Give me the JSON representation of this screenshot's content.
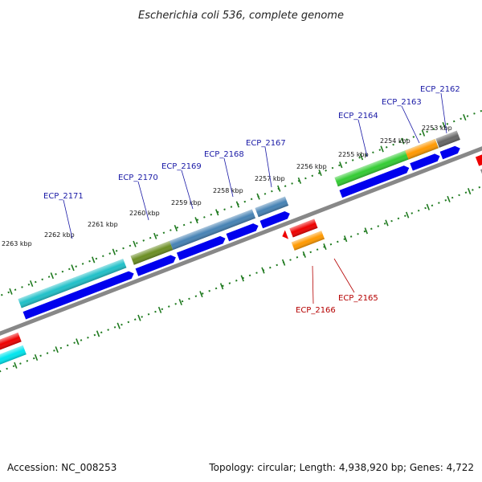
{
  "header": {
    "title": "Escherichia coli 536, complete genome"
  },
  "footer": {
    "accession": "Accession: NC_008253",
    "topology": "Topology: circular; Length: 4,938,920 bp; Genes: 4,722"
  },
  "colors": {
    "forward_label": "#1a1aa6",
    "reverse_label": "#b50000",
    "backbone": "#888888",
    "tick": "#1f7a1f",
    "cds": "#0000ee",
    "rev_red": "#ee0000",
    "rev_orange": "#ff9900",
    "cyan_bright": "#00e5ee"
  },
  "scale_ticks": [
    {
      "label": "2253 kbp"
    },
    {
      "label": "2254 kbp"
    },
    {
      "label": "2255 kbp"
    },
    {
      "label": "2256 kbp"
    },
    {
      "label": "2257 kbp"
    },
    {
      "label": "2258 kbp"
    },
    {
      "label": "2259 kbp"
    },
    {
      "label": "2260 kbp"
    },
    {
      "label": "2261 kbp"
    },
    {
      "label": "2262 kbp"
    },
    {
      "label": "2263 kbp"
    }
  ],
  "genes_forward": [
    {
      "label": "ECP_2162",
      "color": "#666666"
    },
    {
      "label": "ECP_2163",
      "color": "#ff9900"
    },
    {
      "label": "ECP_2164",
      "color": "#33cc33"
    },
    {
      "label": "ECP_2167",
      "color": "#4682b4"
    },
    {
      "label": "ECP_2168",
      "color": "#4682b4"
    },
    {
      "label": "ECP_2169",
      "color": "#4682b4"
    },
    {
      "label": "ECP_2170",
      "color": "#6b8e23"
    },
    {
      "label": "ECP_2171",
      "color": "#20c0c8"
    }
  ],
  "genes_reverse": [
    {
      "label": "ECP_2166",
      "color": "#ee0000"
    },
    {
      "label": "ECP_2165",
      "color": "#ff9900"
    }
  ]
}
